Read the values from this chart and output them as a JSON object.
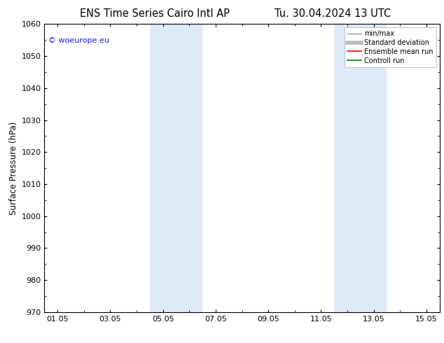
{
  "title_left": "ENS Time Series Cairo Intl AP",
  "title_right": "Tu. 30.04.2024 13 UTC",
  "ylabel": "Surface Pressure (hPa)",
  "ylim": [
    970,
    1060
  ],
  "yticks": [
    970,
    980,
    990,
    1000,
    1010,
    1020,
    1030,
    1040,
    1050,
    1060
  ],
  "xtick_labels": [
    "01.05",
    "03.05",
    "05.05",
    "07.05",
    "09.05",
    "11.05",
    "13.05",
    "15.05"
  ],
  "xtick_positions": [
    0,
    2,
    4,
    6,
    8,
    10,
    12,
    14
  ],
  "xlim": [
    -0.5,
    14.5
  ],
  "shaded_regions": [
    {
      "x_start": 3.5,
      "x_end": 5.5,
      "color": "#ddeaf7"
    },
    {
      "x_start": 10.5,
      "x_end": 12.5,
      "color": "#ddeaf7"
    }
  ],
  "watermark_text": "© woeurope.eu",
  "watermark_color": "#1a1aff",
  "legend_entries": [
    {
      "label": "min/max",
      "color": "#999999",
      "lw": 1.0,
      "ls": "-"
    },
    {
      "label": "Standard deviation",
      "color": "#bbbbbb",
      "lw": 4.0,
      "ls": "-"
    },
    {
      "label": "Ensemble mean run",
      "color": "#ff0000",
      "lw": 1.2,
      "ls": "-"
    },
    {
      "label": "Controll run",
      "color": "#008800",
      "lw": 1.2,
      "ls": "-"
    }
  ],
  "bg_color": "#ffffff",
  "plot_bg_color": "#ffffff",
  "title_fontsize": 10.5,
  "axis_fontsize": 8.5,
  "tick_fontsize": 8,
  "watermark_fontsize": 8,
  "legend_fontsize": 7
}
